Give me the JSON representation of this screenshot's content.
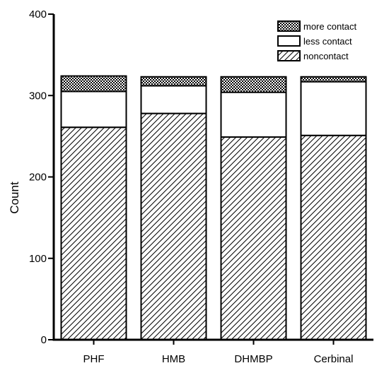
{
  "chart_data": {
    "type": "bar",
    "stacked": true,
    "categories": [
      "PHF",
      "HMB",
      "DHMBP",
      "Cerbinal"
    ],
    "series": [
      {
        "name": "noncontact",
        "values": [
          261,
          278,
          249,
          251
        ],
        "pattern": "diagonal-hatch"
      },
      {
        "name": "less contact",
        "values": [
          44,
          34,
          55,
          66
        ],
        "pattern": "solid-white"
      },
      {
        "name": "more contact",
        "values": [
          19,
          11,
          19,
          6
        ],
        "pattern": "crosshatch"
      }
    ],
    "xlabel": "",
    "ylabel": "Count",
    "ylim": [
      0,
      400
    ],
    "yticks": [
      0,
      100,
      200,
      300,
      400
    ],
    "grid": false,
    "legend_position": "top-right",
    "colors": {
      "stroke": "#000000",
      "background": "#ffffff"
    }
  }
}
